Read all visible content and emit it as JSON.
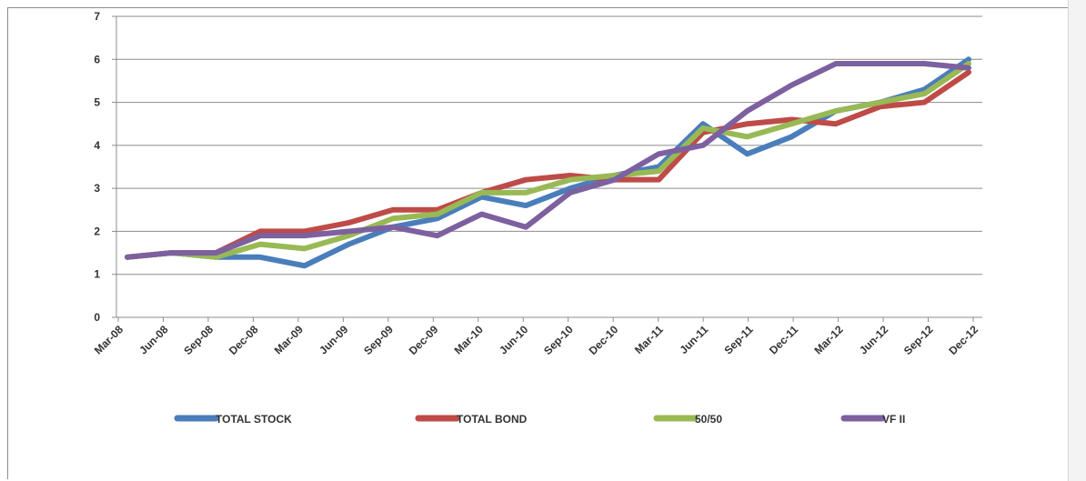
{
  "chart_data": {
    "type": "line",
    "title": "",
    "xlabel": "",
    "ylabel": "",
    "ylim": [
      0,
      7
    ],
    "yticks": [
      0,
      1,
      2,
      3,
      4,
      5,
      6,
      7
    ],
    "grid": true,
    "legend_position": "bottom",
    "categories": [
      "Mar-08",
      "Jun-08",
      "Sep-08",
      "Dec-08",
      "Mar-09",
      "Jun-09",
      "Sep-09",
      "Dec-09",
      "Mar-10",
      "Jun-10",
      "Sep-10",
      "Dec-10",
      "Mar-11",
      "Jun-11",
      "Sep-11",
      "Dec-11",
      "Mar-12",
      "Jun-12",
      "Sep-12",
      "Dec-12"
    ],
    "series": [
      {
        "name": "TOTAL STOCK",
        "color": "#4a7ebb",
        "values": [
          1.4,
          1.5,
          1.4,
          1.4,
          1.2,
          1.7,
          2.1,
          2.3,
          2.8,
          2.6,
          3.0,
          3.3,
          3.5,
          4.5,
          3.8,
          4.2,
          4.8,
          5.0,
          5.3,
          6.0
        ]
      },
      {
        "name": "TOTAL BOND",
        "color": "#be4b48",
        "values": [
          1.4,
          1.5,
          1.5,
          2.0,
          2.0,
          2.2,
          2.5,
          2.5,
          2.9,
          3.2,
          3.3,
          3.2,
          3.2,
          4.3,
          4.5,
          4.6,
          4.5,
          4.9,
          5.0,
          5.7
        ]
      },
      {
        "name": "50/50",
        "color": "#98b954",
        "values": [
          1.4,
          1.5,
          1.4,
          1.7,
          1.6,
          1.9,
          2.3,
          2.4,
          2.9,
          2.9,
          3.2,
          3.3,
          3.4,
          4.4,
          4.2,
          4.5,
          4.8,
          5.0,
          5.2,
          5.9
        ]
      },
      {
        "name": "VF II",
        "color": "#7d60a0",
        "values": [
          1.4,
          1.5,
          1.5,
          1.9,
          1.9,
          2.0,
          2.1,
          1.9,
          2.4,
          2.1,
          2.9,
          3.2,
          3.8,
          4.0,
          4.8,
          5.4,
          5.9,
          5.9,
          5.9,
          5.8
        ]
      }
    ]
  }
}
